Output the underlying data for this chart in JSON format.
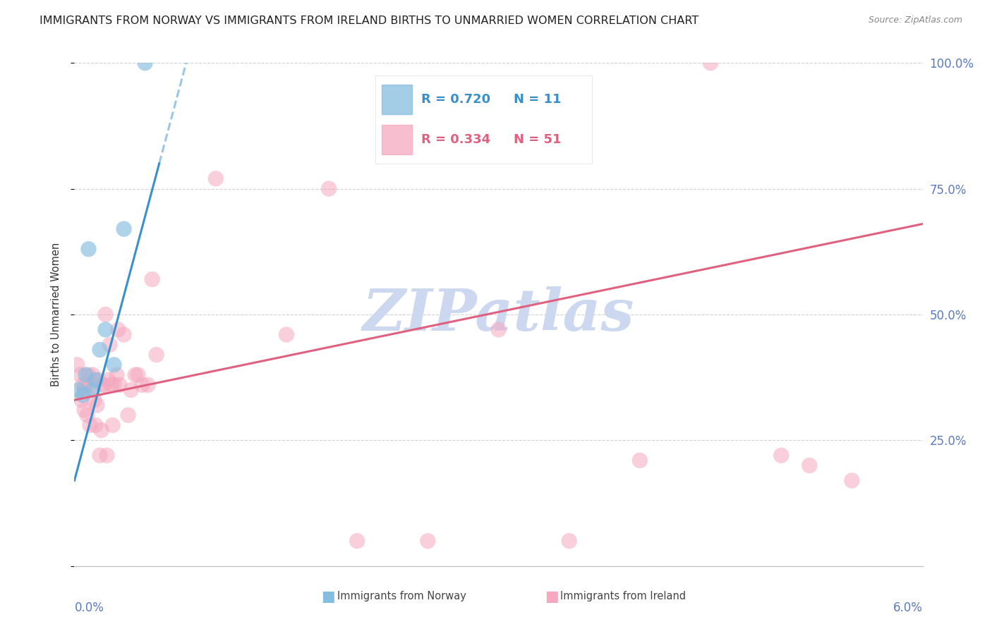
{
  "title": "IMMIGRANTS FROM NORWAY VS IMMIGRANTS FROM IRELAND BIRTHS TO UNMARRIED WOMEN CORRELATION CHART",
  "source": "Source: ZipAtlas.com",
  "ylabel": "Births to Unmarried Women",
  "x_min": 0.0,
  "x_max": 6.0,
  "y_min": 0.0,
  "y_max": 100.0,
  "norway_R": 0.72,
  "norway_N": 11,
  "ireland_R": 0.334,
  "ireland_N": 51,
  "norway_color": "#85bde0",
  "ireland_color": "#f5a8c0",
  "norway_line_color": "#3a8fc8",
  "ireland_line_color": "#e06080",
  "norway_scatter_x": [
    0.03,
    0.06,
    0.08,
    0.1,
    0.13,
    0.15,
    0.18,
    0.22,
    0.28,
    0.35,
    0.5
  ],
  "norway_scatter_y": [
    35,
    34,
    38,
    63,
    35,
    37,
    43,
    47,
    40,
    67,
    100
  ],
  "ireland_scatter_x": [
    0.02,
    0.04,
    0.05,
    0.06,
    0.07,
    0.07,
    0.08,
    0.09,
    0.1,
    0.11,
    0.12,
    0.13,
    0.14,
    0.15,
    0.16,
    0.17,
    0.18,
    0.19,
    0.2,
    0.21,
    0.22,
    0.23,
    0.24,
    0.25,
    0.26,
    0.27,
    0.28,
    0.3,
    0.31,
    0.32,
    0.35,
    0.38,
    0.4,
    0.43,
    0.45,
    0.48,
    0.52,
    0.55,
    0.58,
    1.0,
    1.5,
    2.0,
    2.5,
    3.0,
    3.5,
    4.0,
    4.5,
    5.0,
    5.2,
    5.5,
    1.8
  ],
  "ireland_scatter_y": [
    40,
    38,
    33,
    36,
    35,
    31,
    36,
    30,
    38,
    28,
    36,
    38,
    33,
    28,
    32,
    37,
    22,
    27,
    36,
    36,
    50,
    22,
    37,
    44,
    36,
    28,
    36,
    38,
    47,
    36,
    46,
    30,
    35,
    38,
    38,
    36,
    36,
    57,
    42,
    77,
    46,
    5,
    5,
    47,
    5,
    21,
    100,
    22,
    20,
    17,
    75
  ],
  "norway_line_x0": 0.0,
  "norway_line_x1": 0.6,
  "norway_line_y0": 17.0,
  "norway_line_y1": 80.0,
  "ireland_line_x0": 0.0,
  "ireland_line_x1": 6.0,
  "ireland_line_y0": 33.0,
  "ireland_line_y1": 68.0,
  "background_color": "#ffffff",
  "grid_color": "#cccccc",
  "axis_label_color": "#5a7abf",
  "title_fontsize": 11.5,
  "label_fontsize": 10,
  "legend_fontsize": 13,
  "watermark_text": "ZIPatlas",
  "watermark_color": "#ccd8f0"
}
